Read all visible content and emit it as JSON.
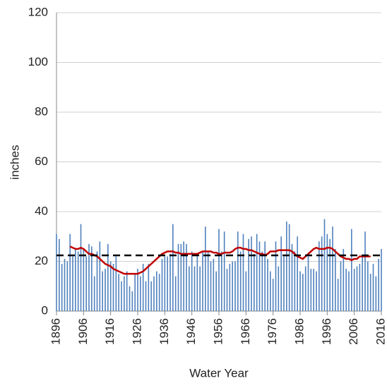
{
  "chart_data": {
    "type": "bar-line",
    "x_label": "Water Year",
    "y_label": "inches",
    "x": [
      1896,
      1897,
      1898,
      1899,
      1900,
      1901,
      1902,
      1903,
      1904,
      1905,
      1906,
      1907,
      1908,
      1909,
      1910,
      1911,
      1912,
      1913,
      1914,
      1915,
      1916,
      1917,
      1918,
      1919,
      1920,
      1921,
      1922,
      1923,
      1924,
      1925,
      1926,
      1927,
      1928,
      1929,
      1930,
      1931,
      1932,
      1933,
      1934,
      1935,
      1936,
      1937,
      1938,
      1939,
      1940,
      1941,
      1942,
      1943,
      1944,
      1945,
      1946,
      1947,
      1948,
      1949,
      1950,
      1951,
      1952,
      1953,
      1954,
      1955,
      1956,
      1957,
      1958,
      1959,
      1960,
      1961,
      1962,
      1963,
      1964,
      1965,
      1966,
      1967,
      1968,
      1969,
      1970,
      1971,
      1972,
      1973,
      1974,
      1975,
      1976,
      1977,
      1978,
      1979,
      1980,
      1981,
      1982,
      1983,
      1984,
      1985,
      1986,
      1987,
      1988,
      1989,
      1990,
      1991,
      1992,
      1993,
      1994,
      1995,
      1996,
      1997,
      1998,
      1999,
      2000,
      2001,
      2002,
      2003,
      2004,
      2005,
      2006,
      2007,
      2008,
      2009,
      2010,
      2011,
      2012,
      2013,
      2014,
      2015,
      2016
    ],
    "series": [
      {
        "kind": "bar",
        "color": "#4f81bd",
        "values": [
          31,
          29,
          19,
          21,
          20,
          31,
          22,
          25,
          24,
          35,
          25,
          22,
          27,
          26,
          14,
          24,
          28,
          16,
          17,
          27,
          20,
          19,
          22,
          15,
          12,
          14,
          16,
          10,
          8,
          15,
          17,
          14,
          19,
          12,
          19,
          12,
          14,
          16,
          15,
          21,
          22,
          22,
          23,
          35,
          14,
          27,
          27,
          28,
          27,
          18,
          24,
          18,
          22,
          18,
          24,
          34,
          24,
          20,
          21,
          16,
          33,
          24,
          32,
          17,
          19,
          20,
          20,
          32,
          24,
          31,
          16,
          29,
          30,
          23,
          31,
          28,
          24,
          28,
          21,
          16,
          13,
          28,
          18,
          30,
          22,
          36,
          35,
          27,
          24,
          30,
          16,
          15,
          18,
          22,
          17,
          17,
          16,
          28,
          30,
          37,
          31,
          29,
          34,
          25,
          13,
          20,
          25,
          17,
          16,
          33,
          17,
          18,
          19,
          22,
          32,
          20,
          15,
          19,
          14,
          21,
          25
        ]
      },
      {
        "kind": "line",
        "color": "#c00000",
        "values": [
          null,
          null,
          null,
          null,
          null,
          26,
          25.5,
          25,
          25,
          25.5,
          25,
          24,
          23,
          23,
          22.5,
          22,
          21,
          20,
          19,
          18.5,
          18,
          17,
          16.5,
          16,
          15.5,
          15,
          15,
          15,
          15,
          15,
          15,
          15.5,
          16,
          17,
          18,
          19,
          20,
          21,
          22,
          23,
          23.5,
          24,
          24,
          24,
          23.5,
          23.5,
          23,
          23,
          23,
          23,
          23,
          23,
          23,
          23.5,
          24,
          24,
          24,
          24,
          23.5,
          23.5,
          23,
          23,
          23.5,
          23.5,
          23.5,
          24,
          25,
          25.5,
          25.5,
          25,
          25,
          24.5,
          24.5,
          24,
          23.5,
          23,
          23,
          22.5,
          23,
          24,
          24,
          24,
          24.5,
          24.5,
          24.5,
          24.5,
          24.5,
          24,
          23,
          22,
          21.5,
          21,
          22,
          23,
          24,
          25,
          25.5,
          25,
          25,
          25,
          25.5,
          25.5,
          25,
          24,
          23,
          22,
          21.5,
          21,
          21,
          20.5,
          21,
          21,
          22,
          22,
          22,
          22,
          22,
          null,
          null,
          null,
          null
        ]
      }
    ],
    "mean": {
      "value": 22.4,
      "color": "#000000"
    },
    "xlim": [
      1896,
      2016
    ],
    "xticks": [
      1896,
      1906,
      1916,
      1926,
      1936,
      1946,
      1956,
      1966,
      1976,
      1986,
      1996,
      2006,
      2016
    ],
    "ylim": [
      0,
      120
    ],
    "yticks": [
      0,
      20,
      40,
      60,
      80,
      100,
      120
    ],
    "grid": true
  }
}
